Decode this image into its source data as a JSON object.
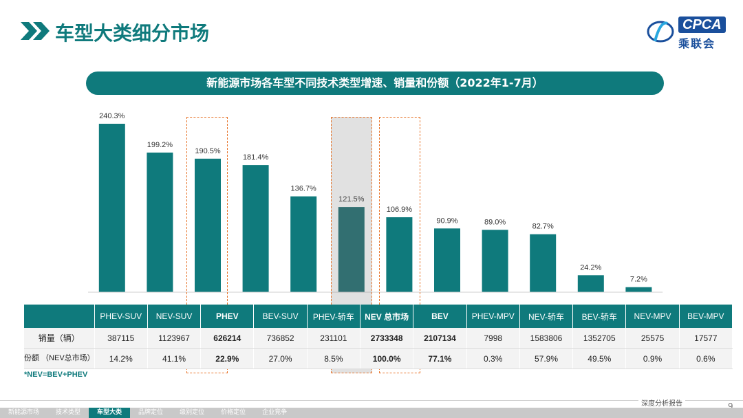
{
  "header": {
    "title": "车型大类细分市场"
  },
  "logo": {
    "brand": "CPCA",
    "cn": "乘联会"
  },
  "banner": {
    "title": "新能源市场各车型不同技术类型增速、销量和份额（2022年1-7月）"
  },
  "chart_data": {
    "type": "bar",
    "title": "新能源市场各车型不同技术类型增速、销量和份额（2022年1-7月）",
    "categories": [
      "PHEV-SUV",
      "NEV-SUV",
      "PHEV",
      "BEV-SUV",
      "PHEV-轿车",
      "NEV 总市场",
      "BEV",
      "PHEV-MPV",
      "NEV-轿车",
      "BEV-轿车",
      "NEV-MPV",
      "BEV-MPV"
    ],
    "series": [
      {
        "name": "增速",
        "values": [
          240.3,
          199.2,
          190.5,
          181.4,
          136.7,
          121.5,
          106.9,
          90.9,
          89.0,
          82.7,
          24.2,
          7.2
        ]
      }
    ],
    "labels": [
      "240.3%",
      "199.2%",
      "190.5%",
      "181.4%",
      "136.7%",
      "121.5%",
      "106.9%",
      "90.9%",
      "89.0%",
      "82.7%",
      "24.2%",
      "7.2%"
    ],
    "highlight_index": 5,
    "ylim": [
      0,
      260
    ],
    "colors": {
      "bar": "#0f7a7c",
      "bar_highlight": "#1f6e70"
    }
  },
  "table": {
    "headers": [
      "PHEV-SUV",
      "NEV-SUV",
      "PHEV",
      "BEV-SUV",
      "PHEV-轿车",
      "NEV 总市场",
      "BEV",
      "PHEV-MPV",
      "NEV-轿车",
      "BEV-轿车",
      "NEV-MPV",
      "BEV-MPV"
    ],
    "rows": [
      {
        "label": "销量（辆）",
        "values": [
          "387115",
          "1123967",
          "626214",
          "736852",
          "231101",
          "2733348",
          "2107134",
          "7998",
          "1583806",
          "1352705",
          "25575",
          "17577"
        ]
      },
      {
        "label": "份额 （NEV总市场）",
        "values": [
          "14.2%",
          "41.1%",
          "22.9%",
          "27.0%",
          "8.5%",
          "100.0%",
          "77.1%",
          "0.3%",
          "57.9%",
          "49.5%",
          "0.9%",
          "0.6%"
        ]
      }
    ]
  },
  "note": "*NEV=BEV+PHEV",
  "footer": {
    "report_label": "深度分析报告",
    "page": "9"
  },
  "nav": {
    "items": [
      "新能源市场",
      "技术类型",
      "车型大类",
      "品牌定位",
      "级别定位",
      "价格定位",
      "企业竞争"
    ],
    "active": "车型大类"
  }
}
